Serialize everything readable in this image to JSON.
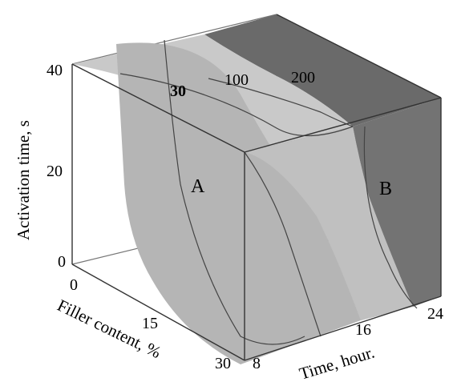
{
  "axes": {
    "activation_time": {
      "title": "Activation time, s",
      "ticks": [
        "0",
        "20",
        "40"
      ]
    },
    "filler_content": {
      "title": "Filler content, %",
      "ticks": [
        "0",
        "15",
        "30"
      ]
    },
    "time": {
      "title": "Time, hour.",
      "ticks": [
        "8",
        "16",
        "24"
      ]
    }
  },
  "regions": {
    "a": "A",
    "b": "B"
  },
  "contours": [
    "30",
    "100",
    "200"
  ],
  "colors": {
    "region_a": "#b8b8b8",
    "region_a_front": "#c4c4c4",
    "region_b": "#6f6f6f",
    "edge": "#555555"
  }
}
